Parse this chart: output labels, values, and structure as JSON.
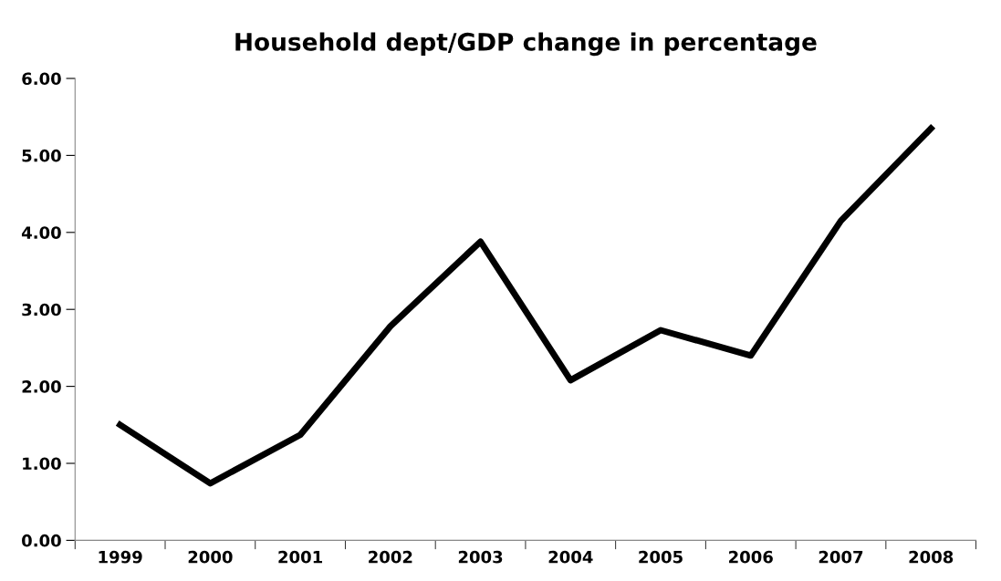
{
  "chart_data": {
    "type": "line",
    "title": "Household dept/GDP change in percentage",
    "categories": [
      "1999",
      "2000",
      "2001",
      "2002",
      "2003",
      "2004",
      "2005",
      "2006",
      "2007",
      "2008"
    ],
    "series": [
      {
        "color": "#000000",
        "values": [
          1.5,
          0.74,
          1.37,
          2.78,
          3.88,
          2.08,
          2.73,
          2.4,
          4.15,
          5.35
        ]
      }
    ],
    "ylim": [
      0,
      6
    ],
    "yticks": [
      {
        "value": 0,
        "label": "0.00"
      },
      {
        "value": 1,
        "label": "1.00"
      },
      {
        "value": 2,
        "label": "2.00"
      },
      {
        "value": 3,
        "label": "3.00"
      },
      {
        "value": 4,
        "label": "4.00"
      },
      {
        "value": 5,
        "label": "5.00"
      },
      {
        "value": 6,
        "label": "6.00"
      }
    ],
    "grid": false,
    "legend": false,
    "marker": "none",
    "line_style": "solid"
  }
}
